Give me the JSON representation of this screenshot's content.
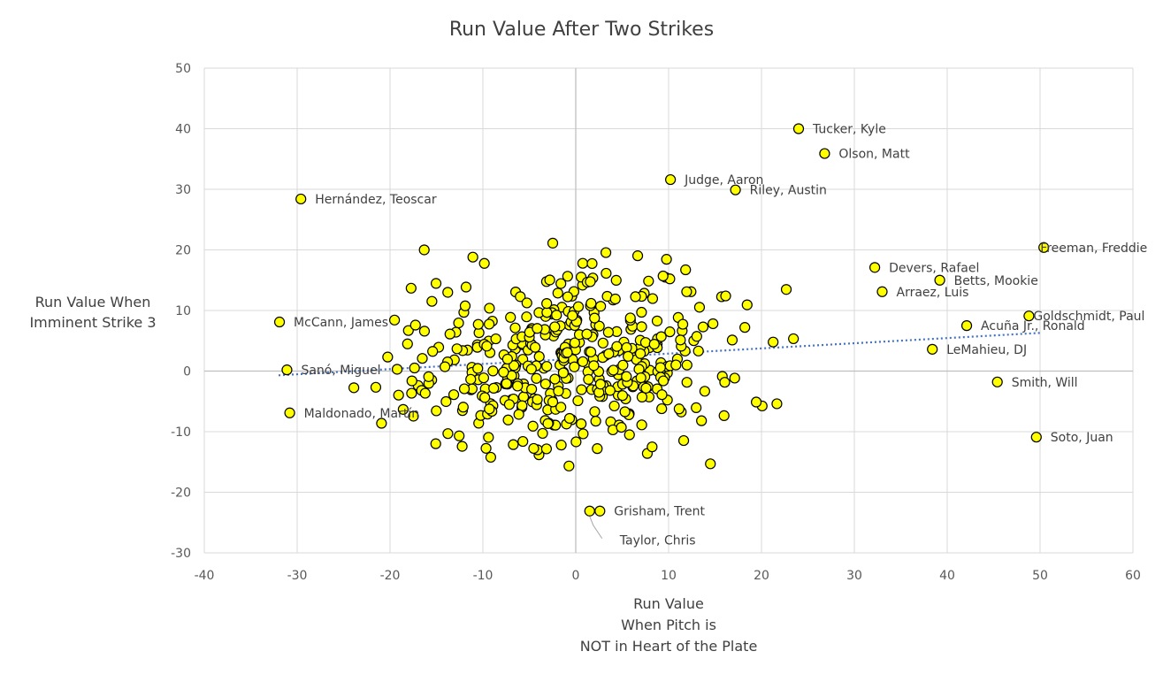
{
  "chart_data": {
    "type": "scatter",
    "title": "Run Value After Two Strikes",
    "xlabel": [
      "Run Value",
      "When Pitch is",
      "NOT in Heart of the Plate"
    ],
    "ylabel": [
      "Run Value When",
      "Imminent Strike 3"
    ],
    "xlim": [
      -40,
      60
    ],
    "ylim": [
      -30,
      50
    ],
    "xticks": [
      "-40",
      "-30",
      "-20",
      "-10",
      "0",
      "10",
      "20",
      "30",
      "40",
      "50",
      "60"
    ],
    "yticks": [
      "50",
      "40",
      "30",
      "20",
      "10",
      "0",
      "-10",
      "-20",
      "-30"
    ],
    "grid": true,
    "legend": "none",
    "marker_color": "#ffff00",
    "marker_edge": "#000000",
    "trendline": {
      "x": [
        -32,
        50
      ],
      "y": [
        -0.7,
        6.3
      ],
      "color": "#4472c4",
      "style": "dotted"
    },
    "labeled_points": [
      {
        "label": "Tucker, Kyle",
        "x": 24,
        "y": 40
      },
      {
        "label": "Olson, Matt",
        "x": 26.8,
        "y": 35.9
      },
      {
        "label": "Judge, Aaron",
        "x": 10.2,
        "y": 31.6
      },
      {
        "label": "Riley, Austin",
        "x": 17.2,
        "y": 29.9
      },
      {
        "label": "Hernández, Teoscar",
        "x": -29.6,
        "y": 28.4
      },
      {
        "label": "Freeman, Freddie",
        "x": 50.4,
        "y": 20.4
      },
      {
        "label": "Devers, Rafael",
        "x": 32.2,
        "y": 17.1
      },
      {
        "label": "Betts, Mookie",
        "x": 39.2,
        "y": 15
      },
      {
        "label": "Arraez, Luis",
        "x": 33,
        "y": 13.1
      },
      {
        "label": "Goldschmidt, Paul",
        "x": 48.8,
        "y": 9.1
      },
      {
        "label": "Acuña Jr., Ronald",
        "x": 42.1,
        "y": 7.5
      },
      {
        "label": "McCann, James",
        "x": -31.9,
        "y": 8.1
      },
      {
        "label": "LeMahieu, DJ",
        "x": 38.4,
        "y": 3.6
      },
      {
        "label": "Sanó, Miguel",
        "x": -31.1,
        "y": 0.2
      },
      {
        "label": "Smith, Will",
        "x": 45.4,
        "y": -1.8
      },
      {
        "label": "Maldonado, Martín",
        "x": -30.8,
        "y": -6.9
      },
      {
        "label": "Soto, Juan",
        "x": 49.6,
        "y": -10.9
      },
      {
        "label": "Grisham, Trent",
        "x": 2.6,
        "y": -23.1
      },
      {
        "label": "Taylor, Chris",
        "x": 1.5,
        "y": -23.1
      }
    ],
    "points_note": "Additional unlabeled points: approximately 450 players"
  }
}
